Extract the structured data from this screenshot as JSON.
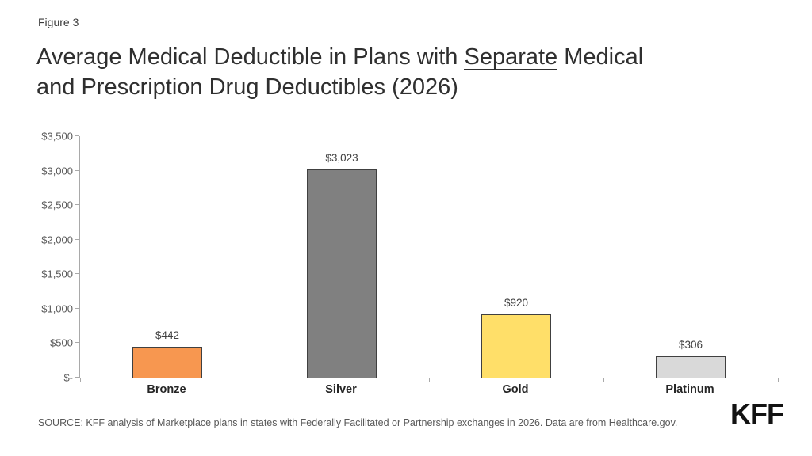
{
  "figure_label": "Figure 3",
  "title": {
    "before_underline": "Average Medical Deductible in Plans with ",
    "underlined": "Separate",
    "after_underline": " Medical",
    "line2": "and Prescription Drug Deductibles (2026)"
  },
  "chart_data": {
    "type": "bar",
    "title": "Average Medical Deductible in Plans with Separate Medical and Prescription Drug Deductibles (2026)",
    "categories": [
      "Bronze",
      "Silver",
      "Gold",
      "Platinum"
    ],
    "values": [
      442,
      3023,
      920,
      306
    ],
    "value_labels": [
      "$442",
      "$3,023",
      "$920",
      "$306"
    ],
    "bar_colors": [
      "#F79750",
      "#808080",
      "#FFDF69",
      "#D9D9D9"
    ],
    "bar_border_color": "#404040",
    "ylim": [
      0,
      3500
    ],
    "ytick_interval": 500,
    "ytick_labels": [
      "$-",
      "$500",
      "$1,000",
      "$1,500",
      "$2,000",
      "$2,500",
      "$3,000",
      "$3,500"
    ],
    "grid": false,
    "legend": false,
    "axis_color": "#A9A9A9"
  },
  "source_note": "SOURCE: KFF analysis of Marketplace plans in states with Federally Facilitated or Partnership exchanges in 2026. Data are from Healthcare.gov.",
  "logo_text": "KFF"
}
